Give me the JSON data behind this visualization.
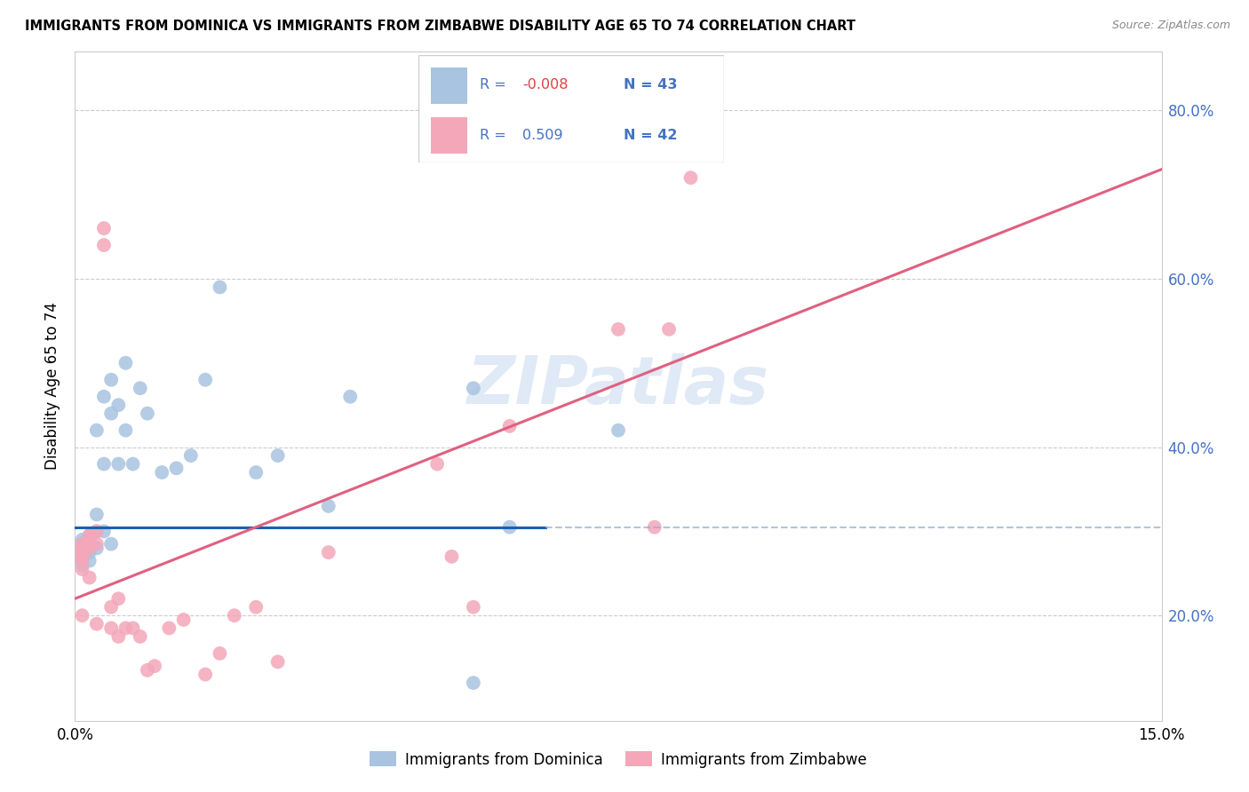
{
  "title": "IMMIGRANTS FROM DOMINICA VS IMMIGRANTS FROM ZIMBABWE DISABILITY AGE 65 TO 74 CORRELATION CHART",
  "source": "Source: ZipAtlas.com",
  "ylabel": "Disability Age 65 to 74",
  "legend_label1": "Immigrants from Dominica",
  "legend_label2": "Immigrants from Zimbabwe",
  "R1": "-0.008",
  "N1": "43",
  "R2": "0.509",
  "N2": "42",
  "xmin": 0.0,
  "xmax": 0.15,
  "ymin": 0.075,
  "ymax": 0.87,
  "color_blue": "#a8c4e0",
  "color_pink": "#f4a7b9",
  "line_blue": "#1a5fb4",
  "line_pink": "#e06080",
  "line_blue_dash": "#90aed0",
  "watermark_color": "#c8d8f0",
  "blue_x": [
    0.001,
    0.001,
    0.001,
    0.001,
    0.001,
    0.001,
    0.001,
    0.002,
    0.002,
    0.002,
    0.002,
    0.002,
    0.002,
    0.003,
    0.003,
    0.003,
    0.003,
    0.004,
    0.004,
    0.004,
    0.005,
    0.005,
    0.005,
    0.006,
    0.006,
    0.007,
    0.007,
    0.008,
    0.009,
    0.01,
    0.012,
    0.014,
    0.016,
    0.018,
    0.02,
    0.025,
    0.028,
    0.035,
    0.038,
    0.055,
    0.06,
    0.075,
    0.055
  ],
  "blue_y": [
    0.29,
    0.285,
    0.28,
    0.275,
    0.27,
    0.265,
    0.26,
    0.295,
    0.29,
    0.285,
    0.28,
    0.275,
    0.265,
    0.42,
    0.32,
    0.3,
    0.28,
    0.46,
    0.38,
    0.3,
    0.48,
    0.44,
    0.285,
    0.45,
    0.38,
    0.5,
    0.42,
    0.38,
    0.47,
    0.44,
    0.37,
    0.375,
    0.39,
    0.48,
    0.59,
    0.37,
    0.39,
    0.33,
    0.46,
    0.47,
    0.305,
    0.42,
    0.12
  ],
  "pink_x": [
    0.001,
    0.001,
    0.001,
    0.001,
    0.001,
    0.001,
    0.001,
    0.002,
    0.002,
    0.002,
    0.002,
    0.002,
    0.003,
    0.003,
    0.003,
    0.004,
    0.004,
    0.005,
    0.005,
    0.006,
    0.006,
    0.007,
    0.008,
    0.009,
    0.01,
    0.011,
    0.013,
    0.015,
    0.018,
    0.02,
    0.022,
    0.025,
    0.028,
    0.035,
    0.05,
    0.052,
    0.055,
    0.06,
    0.075,
    0.08,
    0.082,
    0.085
  ],
  "pink_y": [
    0.285,
    0.28,
    0.275,
    0.27,
    0.265,
    0.255,
    0.2,
    0.295,
    0.29,
    0.285,
    0.28,
    0.245,
    0.3,
    0.285,
    0.19,
    0.64,
    0.66,
    0.21,
    0.185,
    0.22,
    0.175,
    0.185,
    0.185,
    0.175,
    0.135,
    0.14,
    0.185,
    0.195,
    0.13,
    0.155,
    0.2,
    0.21,
    0.145,
    0.275,
    0.38,
    0.27,
    0.21,
    0.425,
    0.54,
    0.305,
    0.54,
    0.72
  ],
  "blue_line_x0": 0.0,
  "blue_line_x_solid_end": 0.065,
  "blue_line_x_dash_end": 0.15,
  "blue_line_y": 0.305,
  "pink_line_x0": 0.0,
  "pink_line_x1": 0.15,
  "pink_line_y0": 0.22,
  "pink_line_y1": 0.73
}
